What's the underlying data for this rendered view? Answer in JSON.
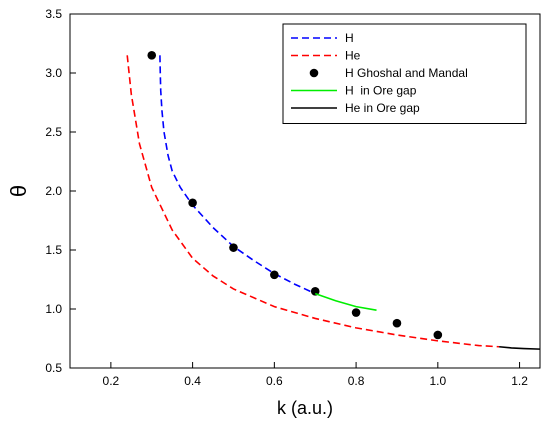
{
  "chart_data": {
    "type": "line",
    "xlabel": "k (a.u.)",
    "ylabel": "θ",
    "xlim": [
      0.1,
      1.25
    ],
    "ylim": [
      0.5,
      3.5
    ],
    "xticks": [
      "0.2",
      "0.4",
      "0.6",
      "0.8",
      "1.0",
      "1.2"
    ],
    "yticks": [
      "0.5",
      "1.0",
      "1.5",
      "2.0",
      "2.5",
      "3.0",
      "3.5"
    ],
    "grid": false,
    "legend_position": "top-right",
    "series": [
      {
        "name": "H",
        "style": "dashed",
        "color": "#0000ff",
        "x": [
          0.32,
          0.321,
          0.322,
          0.325,
          0.33,
          0.34,
          0.35,
          0.37,
          0.4,
          0.45,
          0.5,
          0.55,
          0.6,
          0.65,
          0.7
        ],
        "y": [
          3.15,
          2.98,
          2.85,
          2.68,
          2.5,
          2.3,
          2.17,
          2.03,
          1.88,
          1.69,
          1.53,
          1.41,
          1.3,
          1.21,
          1.13
        ]
      },
      {
        "name": "He",
        "style": "dashed",
        "color": "#ff0000",
        "x": [
          0.24,
          0.25,
          0.27,
          0.3,
          0.35,
          0.4,
          0.45,
          0.5,
          0.6,
          0.7,
          0.8,
          0.9,
          1.0,
          1.1,
          1.15
        ],
        "y": [
          3.15,
          2.82,
          2.4,
          2.03,
          1.67,
          1.43,
          1.28,
          1.17,
          1.02,
          0.92,
          0.84,
          0.78,
          0.73,
          0.69,
          0.68
        ]
      },
      {
        "name": "H Ghoshal and Mandal",
        "style": "markers",
        "color": "#000000",
        "x": [
          0.3,
          0.4,
          0.5,
          0.6,
          0.7,
          0.8,
          0.9,
          1.0
        ],
        "y": [
          3.15,
          1.9,
          1.52,
          1.29,
          1.15,
          0.97,
          0.88,
          0.78
        ]
      },
      {
        "name": "H  in Ore gap",
        "style": "solid",
        "color": "#00ee00",
        "x": [
          0.7,
          0.75,
          0.8,
          0.85
        ],
        "y": [
          1.13,
          1.07,
          1.02,
          0.99
        ]
      },
      {
        "name": "He in Ore gap",
        "style": "solid",
        "color": "#000000",
        "x": [
          1.15,
          1.18,
          1.21,
          1.25
        ],
        "y": [
          0.68,
          0.67,
          0.665,
          0.66
        ]
      }
    ]
  }
}
